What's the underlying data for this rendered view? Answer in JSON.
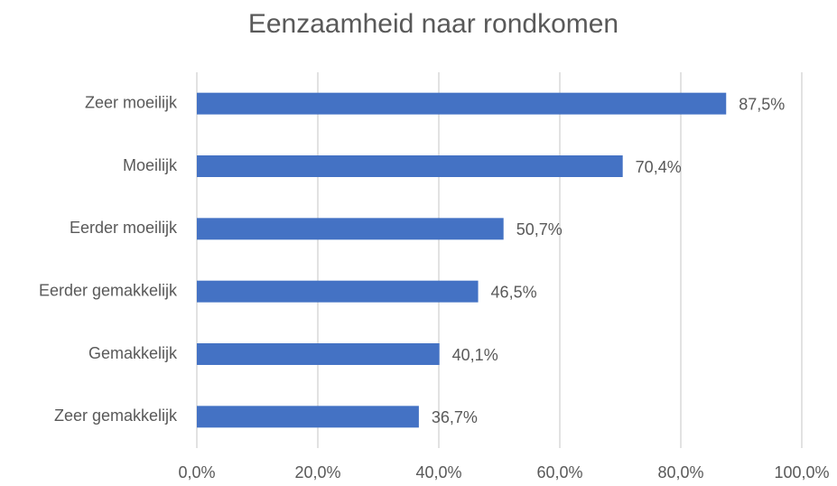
{
  "chart_data": {
    "type": "bar",
    "orientation": "horizontal",
    "title": "Eenzaamheid naar rondkomen",
    "categories": [
      "Zeer moeilijk",
      "Moeilijk",
      "Eerder moeilijk",
      "Eerder gemakkelijk",
      "Gemakkelijk",
      "Zeer gemakkelijk"
    ],
    "values": [
      87.5,
      70.4,
      50.7,
      46.5,
      40.1,
      36.7
    ],
    "value_labels": [
      "87,5%",
      "70,4%",
      "50,7%",
      "46,5%",
      "40,1%",
      "36,7%"
    ],
    "color": "#4472c4",
    "xlim": [
      0,
      100
    ],
    "xticks": [
      {
        "value": 0,
        "label": "0,0%"
      },
      {
        "value": 20,
        "label": "20,0%"
      },
      {
        "value": 40,
        "label": "40,0%"
      },
      {
        "value": 60,
        "label": "60,0%"
      },
      {
        "value": 80,
        "label": "80,0%"
      },
      {
        "value": 100,
        "label": "100,0%"
      }
    ],
    "grid": true
  }
}
